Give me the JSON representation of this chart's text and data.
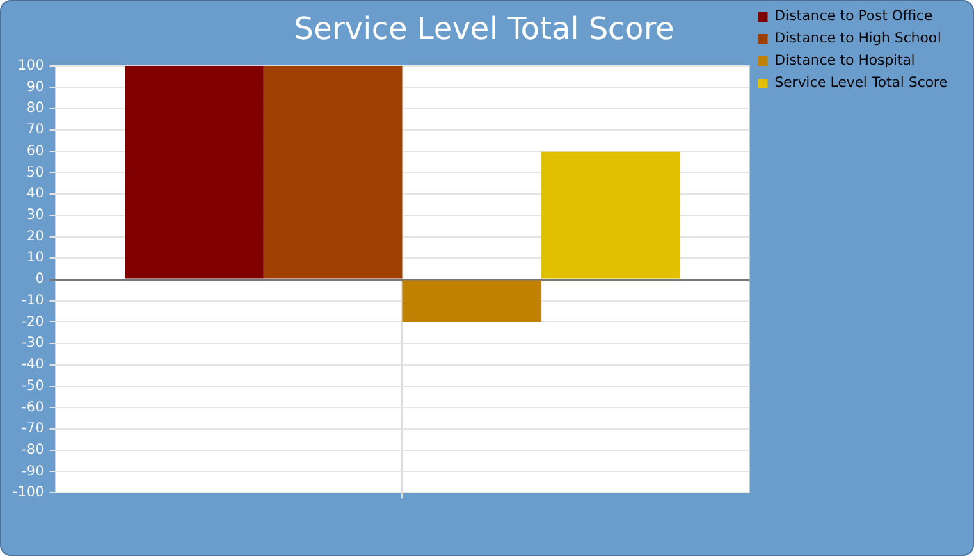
{
  "chart_data": {
    "type": "bar",
    "title": "Service Level Total Score",
    "categories": [
      null
    ],
    "series": [
      {
        "name": "Distance to Post Office",
        "color": "#800000",
        "values": [
          100
        ]
      },
      {
        "name": "Distance to High School",
        "color": "#a04000",
        "values": [
          100
        ]
      },
      {
        "name": "Distance to Hospital",
        "color": "#c08000",
        "values": [
          -20
        ]
      },
      {
        "name": "Service Level Total Score",
        "color": "#e0c000",
        "values": [
          60
        ]
      }
    ],
    "ylim": [
      -100,
      100
    ],
    "yticks": [
      -100,
      -90,
      -80,
      -70,
      -60,
      -50,
      -40,
      -30,
      -20,
      -10,
      0,
      10,
      20,
      30,
      40,
      50,
      60,
      70,
      80,
      90,
      100
    ],
    "grid": "y",
    "legend": "right"
  }
}
